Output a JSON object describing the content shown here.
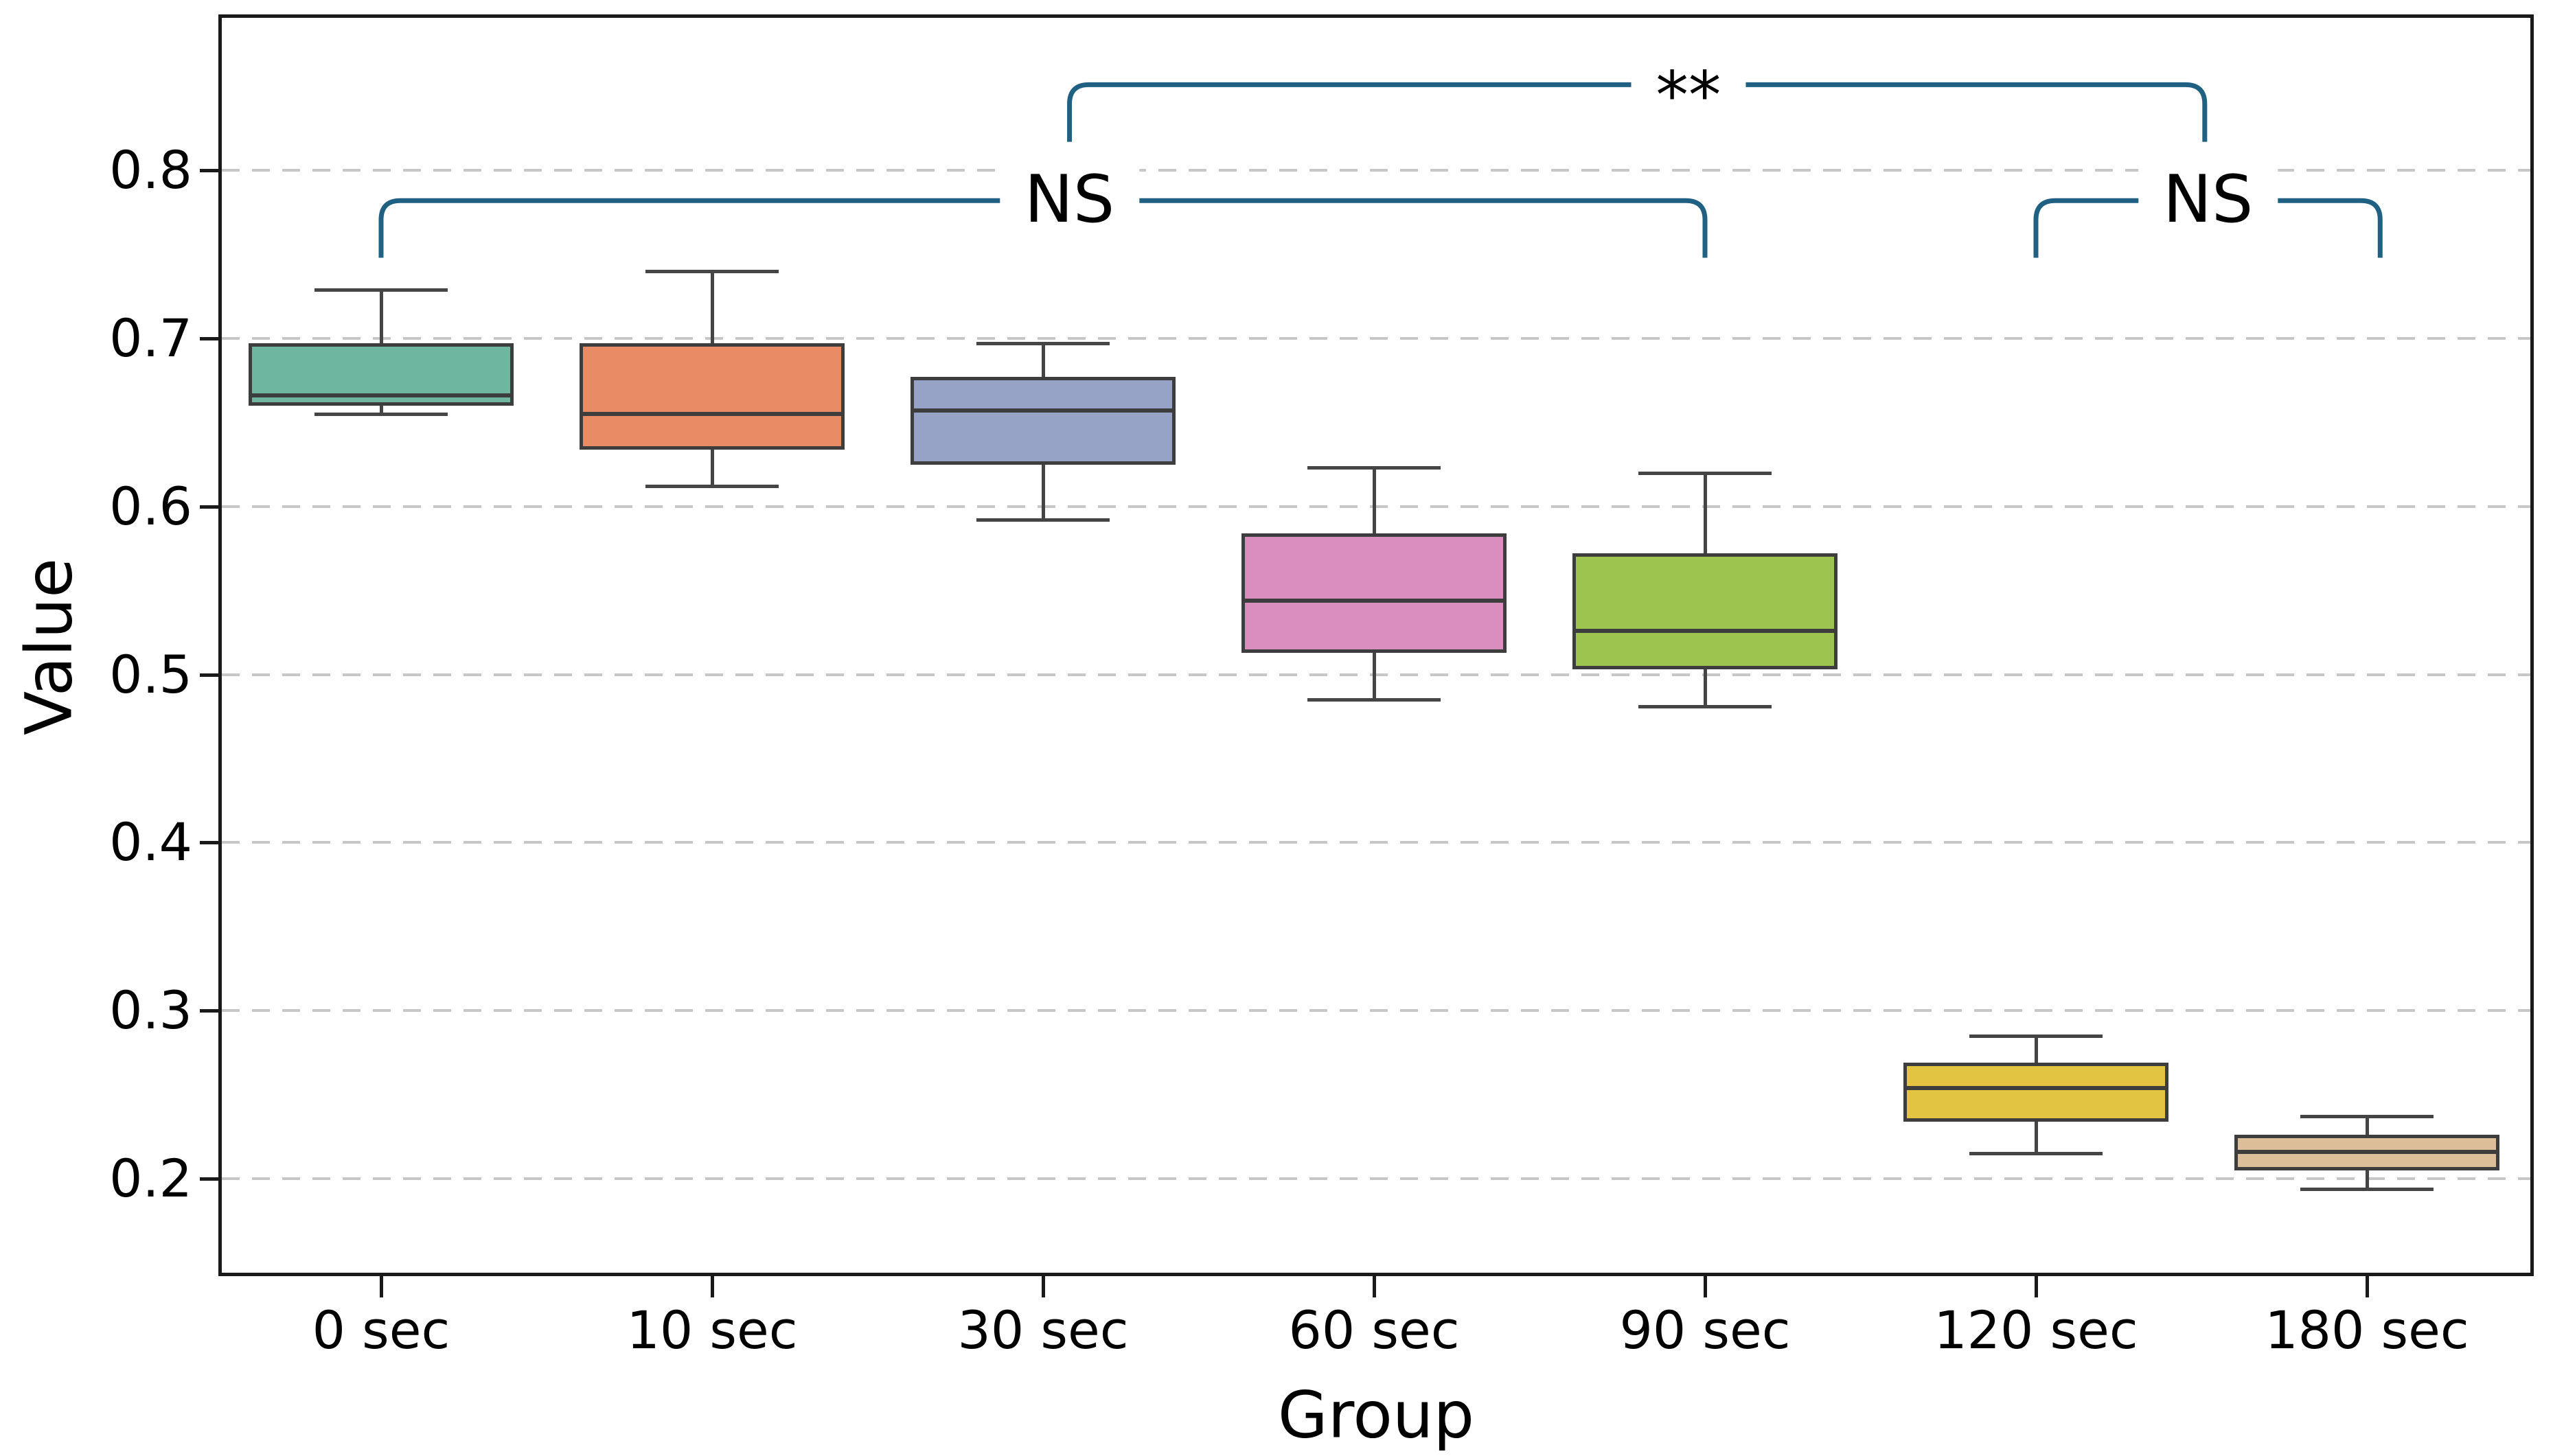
{
  "figure": {
    "ylabel": "Value",
    "xlabel": "Group"
  },
  "chart_data": {
    "type": "box",
    "title": "",
    "xlabel": "Group",
    "ylabel": "Value",
    "categories": [
      "0 sec",
      "10 sec",
      "30 sec",
      "60 sec",
      "90 sec",
      "120 sec",
      "180 sec"
    ],
    "yticks": [
      0.2,
      0.3,
      0.4,
      0.5,
      0.6,
      0.7,
      0.8
    ],
    "ytick_labels": [
      "0.2",
      "0.3",
      "0.4",
      "0.5",
      "0.6",
      "0.7",
      "0.8"
    ],
    "ylim": [
      0.144,
      0.892
    ],
    "grid": "horizontal dashed gridlines at each y tick",
    "legend": "none",
    "series": [
      {
        "name": "0 sec",
        "whisker_low": 0.655,
        "q1": 0.66,
        "median": 0.666,
        "q3": 0.697,
        "whisker_high": 0.729,
        "color": "#6fb6a0"
      },
      {
        "name": "10 sec",
        "whisker_low": 0.612,
        "q1": 0.634,
        "median": 0.655,
        "q3": 0.697,
        "whisker_high": 0.74,
        "color": "#e98b65"
      },
      {
        "name": "30 sec",
        "whisker_low": 0.592,
        "q1": 0.625,
        "median": 0.657,
        "q3": 0.677,
        "whisker_high": 0.697,
        "color": "#96a3c6"
      },
      {
        "name": "60 sec",
        "whisker_low": 0.485,
        "q1": 0.513,
        "median": 0.544,
        "q3": 0.584,
        "whisker_high": 0.623,
        "color": "#da8ec0"
      },
      {
        "name": "90 sec",
        "whisker_low": 0.481,
        "q1": 0.503,
        "median": 0.526,
        "q3": 0.572,
        "whisker_high": 0.62,
        "color": "#9cc44f"
      },
      {
        "name": "120 sec",
        "whisker_low": 0.215,
        "q1": 0.234,
        "median": 0.254,
        "q3": 0.269,
        "whisker_high": 0.285,
        "color": "#e3c342"
      },
      {
        "name": "180 sec",
        "whisker_low": 0.194,
        "q1": 0.205,
        "median": 0.216,
        "q3": 0.226,
        "whisker_high": 0.237,
        "color": "#dcbf98"
      }
    ],
    "annotations": [
      {
        "label": "NS",
        "x1_unit": 0.0,
        "x2_unit": 4.0,
        "label_x_unit": 2.08,
        "line_value": 0.782,
        "tick_drop": 0.034
      },
      {
        "label": "**",
        "x1_unit": 2.08,
        "x2_unit": 5.51,
        "label_x_unit": 3.95,
        "line_value": 0.851,
        "tick_drop": 0.034
      },
      {
        "label": "NS",
        "x1_unit": 5.0,
        "x2_unit": 6.04,
        "label_x_unit": 5.52,
        "line_value": 0.782,
        "tick_drop": 0.034
      }
    ],
    "annotation_color": "#1f6083"
  }
}
